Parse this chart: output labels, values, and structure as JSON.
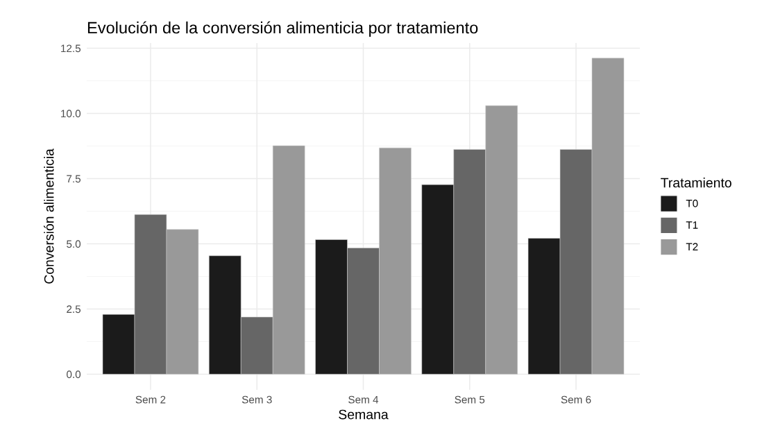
{
  "chart_data": {
    "type": "bar",
    "title": "Evolución de la conversión alimenticia por tratamiento",
    "xlabel": "Semana",
    "ylabel": "Conversión alimenticia",
    "legend_title": "Tratamiento",
    "categories": [
      "Sem 2",
      "Sem 3",
      "Sem 4",
      "Sem 5",
      "Sem 6"
    ],
    "series": [
      {
        "name": "T0",
        "color": "#1b1b1b",
        "values": [
          2.29,
          4.54,
          5.16,
          7.27,
          5.21
        ]
      },
      {
        "name": "T1",
        "color": "#666666",
        "values": [
          6.12,
          2.19,
          4.84,
          8.62,
          8.62
        ]
      },
      {
        "name": "T2",
        "color": "#999999",
        "values": [
          5.55,
          8.76,
          8.68,
          10.3,
          12.12
        ]
      }
    ],
    "ylim": [
      -0.6,
      12.7
    ],
    "yticks": [
      {
        "value": 0,
        "label": "0.0"
      },
      2.5,
      {
        "value": 5,
        "label": "5.0"
      },
      7.5,
      {
        "value": 10,
        "label": "10.0"
      },
      12.5
    ],
    "grid": true,
    "legend": "right"
  }
}
